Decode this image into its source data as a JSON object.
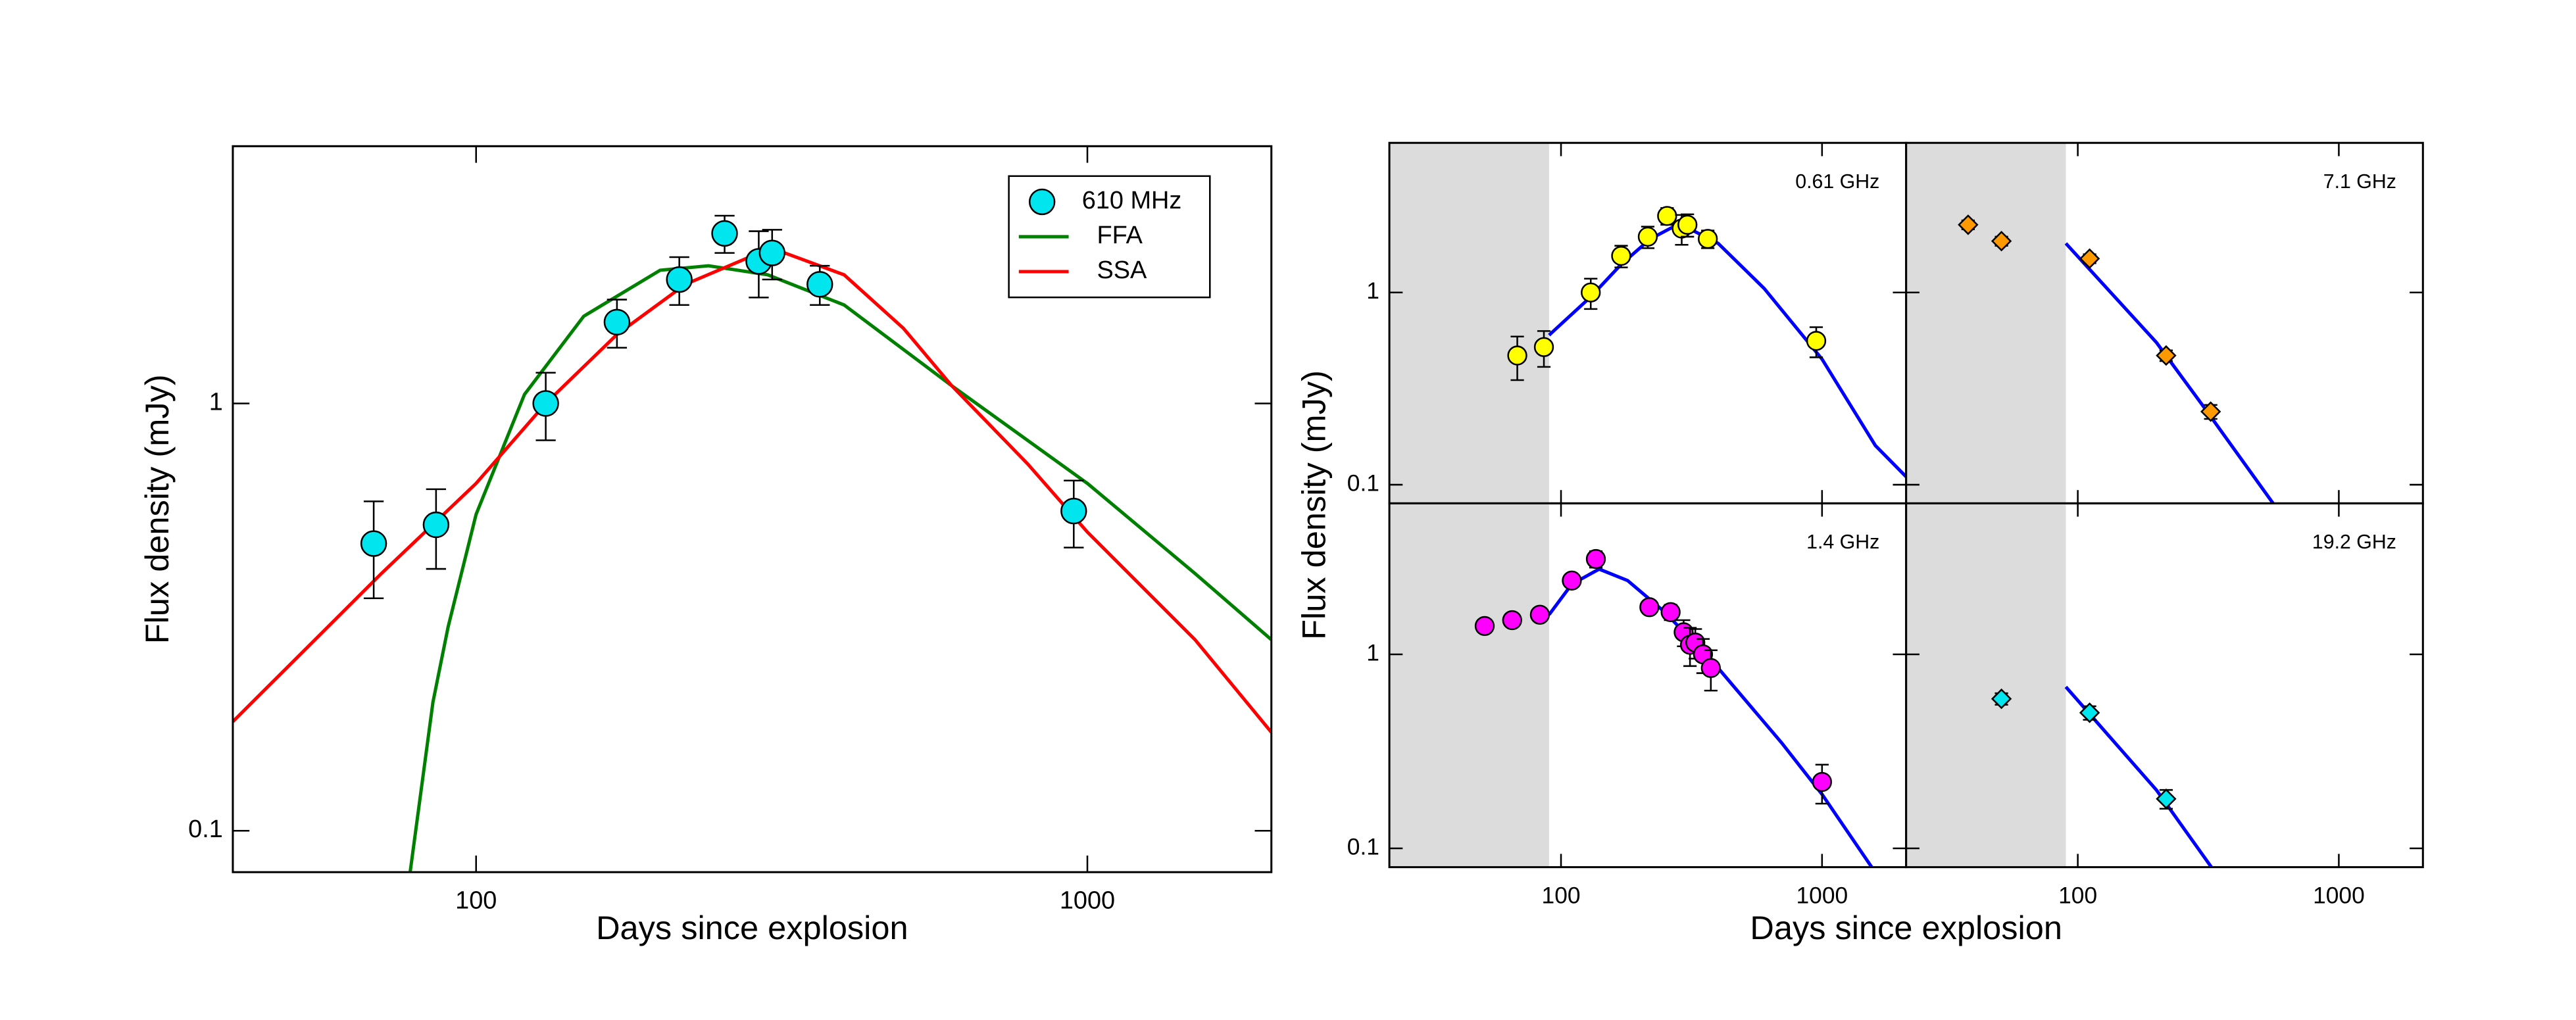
{
  "chart_data": [
    {
      "type": "scatter",
      "xlabel": "Days since explosion",
      "ylabel": "Flux density (mJy)",
      "log_x": true,
      "log_y": true,
      "xlim": [
        40,
        2000
      ],
      "ylim": [
        0.08,
        4
      ],
      "xticks": [
        100,
        1000
      ],
      "yticks": [
        0.1,
        1
      ],
      "legend": "upper right",
      "series": [
        {
          "name": "610 MHz",
          "kind": "points",
          "marker": "circle",
          "color": "#00e5ee",
          "x": [
            68,
            86,
            130,
            170,
            215,
            255,
            290,
            305,
            365,
            950
          ],
          "values": [
            0.47,
            0.52,
            1.0,
            1.55,
            1.95,
            2.5,
            2.15,
            2.25,
            1.9,
            0.56
          ],
          "errors": [
            0.12,
            0.11,
            0.18,
            0.2,
            0.25,
            0.25,
            0.38,
            0.3,
            0.2,
            0.1
          ]
        },
        {
          "name": "FFA",
          "kind": "line",
          "color": "#008000",
          "x": [
            78,
            85,
            90,
            100,
            120,
            150,
            200,
            240,
            300,
            400,
            600,
            1000,
            1500,
            2000
          ],
          "values": [
            0.08,
            0.2,
            0.3,
            0.55,
            1.05,
            1.6,
            2.05,
            2.1,
            2.0,
            1.7,
            1.1,
            0.65,
            0.4,
            0.28
          ]
        },
        {
          "name": "SSA",
          "kind": "line",
          "color": "#ff0000",
          "x": [
            40,
            70,
            100,
            130,
            170,
            220,
            280,
            320,
            400,
            500,
            600,
            800,
            1000,
            1500,
            2000
          ],
          "values": [
            0.18,
            0.4,
            0.65,
            1.0,
            1.45,
            1.9,
            2.2,
            2.25,
            2.0,
            1.5,
            1.1,
            0.72,
            0.5,
            0.28,
            0.17
          ]
        }
      ]
    },
    {
      "type": "scatter",
      "label": "0.61 GHz",
      "xlabel": "Days since explosion",
      "ylabel": "Flux density (mJy)",
      "log_x": true,
      "log_y": true,
      "xlim": [
        22,
        2100
      ],
      "ylim": [
        0.08,
        6
      ],
      "xticks": [
        100,
        1000
      ],
      "yticks": [
        0.1,
        1
      ],
      "show_xticklabels": false,
      "show_yticklabels": true,
      "shaded_x": [
        22,
        90
      ],
      "series": [
        {
          "kind": "points",
          "marker": "circle",
          "color": "#ffff00",
          "x": [
            68,
            86,
            130,
            170,
            215,
            255,
            290,
            305,
            365,
            950
          ],
          "values": [
            0.47,
            0.52,
            1.0,
            1.55,
            1.95,
            2.5,
            2.15,
            2.25,
            1.9,
            0.56
          ],
          "errors": [
            0.12,
            0.11,
            0.18,
            0.2,
            0.25,
            0.25,
            0.38,
            0.3,
            0.2,
            0.1
          ]
        },
        {
          "kind": "line",
          "color": "#0000ff",
          "x": [
            90,
            130,
            170,
            220,
            270,
            320,
            400,
            600,
            1000,
            1600,
            2100
          ],
          "values": [
            0.6,
            0.95,
            1.4,
            1.9,
            2.2,
            2.1,
            1.8,
            1.05,
            0.45,
            0.16,
            0.11
          ]
        }
      ]
    },
    {
      "type": "scatter",
      "label": "7.1 GHz",
      "log_x": true,
      "log_y": true,
      "xlim": [
        22,
        2100
      ],
      "ylim": [
        0.08,
        6
      ],
      "xticks": [
        100,
        1000
      ],
      "yticks": [
        0.1,
        1
      ],
      "show_xticklabels": false,
      "show_yticklabels": false,
      "shaded_x": [
        22,
        90
      ],
      "series": [
        {
          "kind": "points",
          "marker": "diamond",
          "color": "#ff9900",
          "x": [
            38,
            51,
            111,
            218,
            323
          ],
          "values": [
            2.25,
            1.85,
            1.5,
            0.47,
            0.24
          ],
          "errors": [
            0.12,
            0.1,
            0.08,
            0.03,
            0.02
          ]
        },
        {
          "kind": "line",
          "color": "#0000ff",
          "x": [
            90,
            200,
            300,
            560
          ],
          "values": [
            1.8,
            0.55,
            0.26,
            0.08
          ]
        }
      ]
    },
    {
      "type": "scatter",
      "label": "1.4 GHz",
      "log_x": true,
      "log_y": true,
      "xlim": [
        22,
        2100
      ],
      "ylim": [
        0.08,
        6
      ],
      "xticks": [
        100,
        1000
      ],
      "yticks": [
        0.1,
        1
      ],
      "show_xticklabels": true,
      "show_yticklabels": true,
      "shaded_x": [
        22,
        90
      ],
      "series": [
        {
          "kind": "points",
          "marker": "circle",
          "color": "#ff00ff",
          "x": [
            51,
            65,
            83,
            110,
            136,
            218,
            263,
            295,
            312,
            327,
            350,
            375,
            1000
          ],
          "values": [
            1.4,
            1.5,
            1.6,
            2.4,
            3.1,
            1.75,
            1.65,
            1.3,
            1.12,
            1.15,
            1.0,
            0.85,
            0.22
          ],
          "errors": [
            0.1,
            0.1,
            0.1,
            0.15,
            0.3,
            0.12,
            0.15,
            0.2,
            0.25,
            0.2,
            0.2,
            0.2,
            0.05
          ]
        },
        {
          "kind": "line",
          "color": "#0000ff",
          "x": [
            90,
            110,
            140,
            180,
            250,
            400,
            700,
            1000,
            1550
          ],
          "values": [
            1.6,
            2.3,
            2.75,
            2.4,
            1.65,
            0.85,
            0.35,
            0.19,
            0.08
          ]
        }
      ]
    },
    {
      "type": "scatter",
      "label": "19.2 GHz",
      "log_x": true,
      "log_y": true,
      "xlim": [
        22,
        2100
      ],
      "ylim": [
        0.08,
        6
      ],
      "xticks": [
        100,
        1000
      ],
      "yticks": [
        0.1,
        1
      ],
      "show_xticklabels": true,
      "show_yticklabels": false,
      "shaded_x": [
        22,
        90
      ],
      "series": [
        {
          "kind": "points",
          "marker": "diamond",
          "color": "#00e5ee",
          "x": [
            51,
            111,
            218
          ],
          "values": [
            0.59,
            0.5,
            0.18
          ],
          "errors": [
            0.04,
            0.04,
            0.02
          ]
        },
        {
          "kind": "line",
          "color": "#0000ff",
          "x": [
            90,
            200,
            325
          ],
          "values": [
            0.68,
            0.2,
            0.08
          ]
        }
      ]
    }
  ]
}
